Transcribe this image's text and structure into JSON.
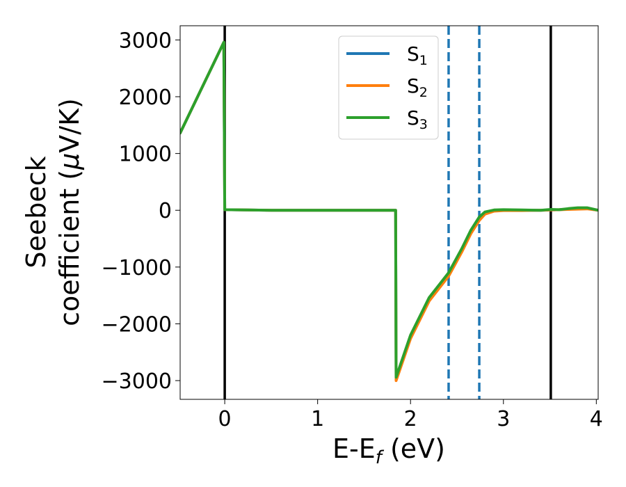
{
  "chart_data": {
    "type": "line",
    "xlabel": "E-E",
    "xlabel_sub": "f",
    "xlabel_unit": " (eV)",
    "ylabel_line1": "Seebeck",
    "ylabel_line2": "coefficient  (",
    "ylabel_mu": "μ",
    "ylabel_unit": "V/K)",
    "xlim": [
      -0.48,
      4.02
    ],
    "ylim": [
      -3330,
      3250
    ],
    "xticks": [
      0,
      1,
      2,
      3,
      4
    ],
    "xtick_labels": [
      "0",
      "1",
      "2",
      "3",
      "4"
    ],
    "yticks": [
      3000,
      2000,
      1000,
      0,
      -1000,
      -2000,
      -3000
    ],
    "ytick_labels": [
      "3000",
      "2000",
      "1000",
      "0",
      "−1000",
      "−2000",
      "−3000"
    ],
    "grid": false,
    "legend_position": "top-center",
    "vlines": [
      {
        "x": 0.0,
        "style": "solid",
        "color": "#000000"
      },
      {
        "x": 2.41,
        "style": "dashed",
        "color": "#1f77b4"
      },
      {
        "x": 2.74,
        "style": "dashed",
        "color": "#1f77b4"
      },
      {
        "x": 3.51,
        "style": "solid",
        "color": "#000000"
      }
    ],
    "series": [
      {
        "name": "S",
        "sub": "1",
        "color": "#1f77b4",
        "x": [
          -0.48,
          -0.01,
          0.0,
          0.5,
          1.0,
          1.5,
          1.84,
          1.845,
          2.0,
          2.2,
          2.41,
          2.55,
          2.65,
          2.74,
          2.8,
          2.9,
          3.0,
          3.2,
          3.4,
          3.51,
          3.6,
          3.7,
          3.8,
          3.9,
          4.02
        ],
        "y": [
          1360,
          2960,
          10,
          0,
          0,
          0,
          0,
          -2960,
          -2220,
          -1560,
          -1120,
          -700,
          -380,
          -150,
          -50,
          -5,
          0,
          0,
          0,
          5,
          10,
          20,
          25,
          30,
          0
        ]
      },
      {
        "name": "S",
        "sub": "2",
        "color": "#ff7f0e",
        "x": [
          -0.48,
          -0.01,
          0.0,
          0.5,
          1.0,
          1.5,
          1.84,
          1.845,
          2.0,
          2.2,
          2.41,
          2.55,
          2.65,
          2.74,
          2.8,
          2.9,
          3.0,
          3.2,
          3.4,
          3.51,
          3.6,
          3.7,
          3.8,
          3.9,
          4.02
        ],
        "y": [
          1360,
          2960,
          10,
          0,
          0,
          0,
          0,
          -3000,
          -2260,
          -1600,
          -1160,
          -740,
          -410,
          -180,
          -70,
          -15,
          -5,
          -5,
          0,
          5,
          10,
          15,
          20,
          25,
          0
        ]
      },
      {
        "name": "S",
        "sub": "3",
        "color": "#2ca02c",
        "x": [
          -0.48,
          -0.01,
          0.0,
          0.5,
          1.0,
          1.5,
          1.84,
          1.845,
          2.0,
          2.2,
          2.41,
          2.55,
          2.65,
          2.74,
          2.8,
          2.9,
          3.0,
          3.2,
          3.4,
          3.51,
          3.6,
          3.7,
          3.8,
          3.9,
          4.02
        ],
        "y": [
          1360,
          2960,
          10,
          0,
          0,
          0,
          0,
          -2940,
          -2200,
          -1540,
          -1100,
          -680,
          -350,
          -120,
          -30,
          5,
          10,
          5,
          0,
          15,
          10,
          30,
          45,
          45,
          0
        ]
      }
    ]
  }
}
